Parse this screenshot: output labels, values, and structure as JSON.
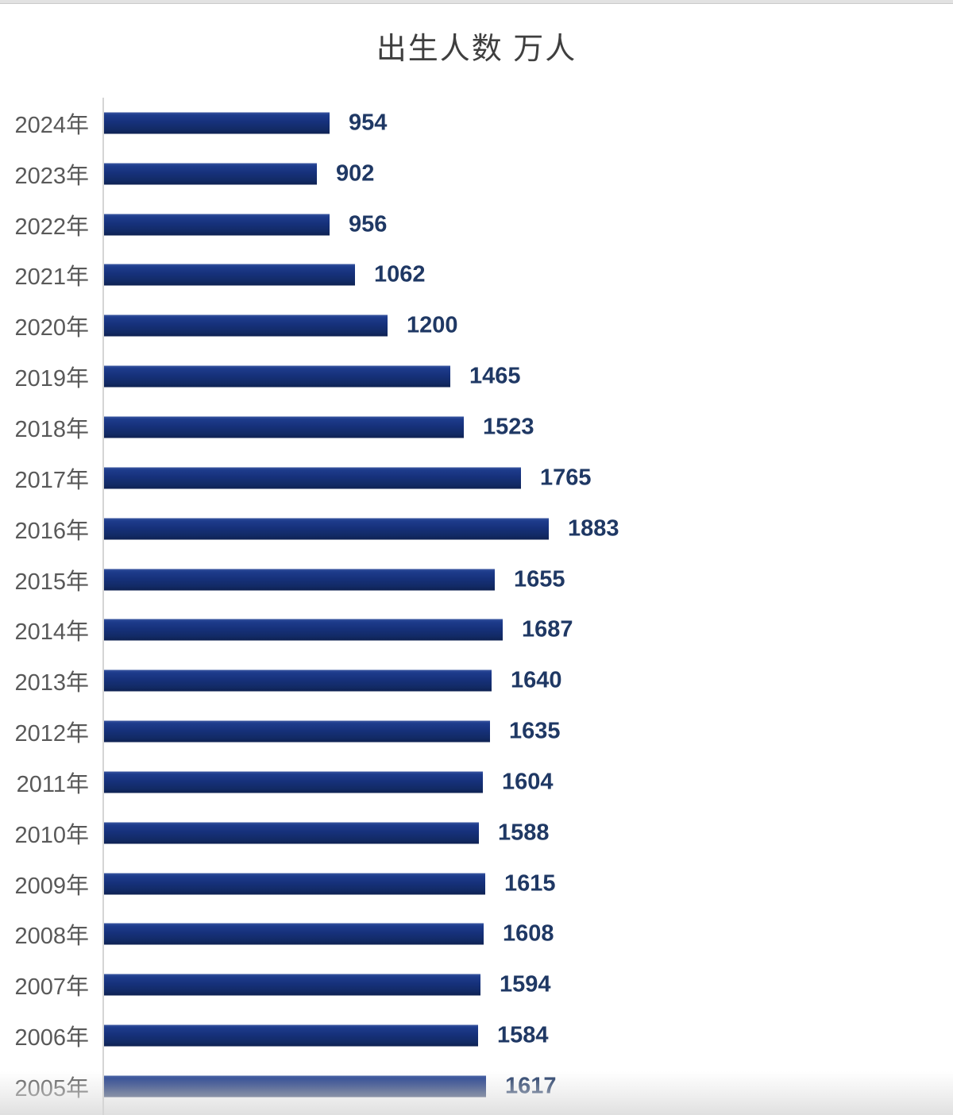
{
  "page": {
    "title": "出生人数 万人"
  },
  "chart_data": {
    "type": "bar",
    "orientation": "horizontal",
    "title": "出生人数 万人",
    "categories": [
      "2024年",
      "2023年",
      "2022年",
      "2021年",
      "2020年",
      "2019年",
      "2018年",
      "2017年",
      "2016年",
      "2015年",
      "2014年",
      "2013年",
      "2012年",
      "2011年",
      "2010年",
      "2009年",
      "2008年",
      "2007年",
      "2006年",
      "2005年"
    ],
    "values": [
      954,
      902,
      956,
      1062,
      1200,
      1465,
      1523,
      1765,
      1883,
      1655,
      1687,
      1640,
      1635,
      1604,
      1588,
      1615,
      1608,
      1594,
      1584,
      1617
    ],
    "xlabel": "",
    "ylabel": "",
    "xlim": [
      0,
      1900
    ],
    "grid": false,
    "legend": false,
    "data_labels": true,
    "colors": {
      "bar": "#16317b",
      "value_label": "#1f3864",
      "category_label": "#595959",
      "axis_line": "#d5d5d5",
      "title": "#3f3f3f",
      "background": "#ffffff"
    }
  }
}
